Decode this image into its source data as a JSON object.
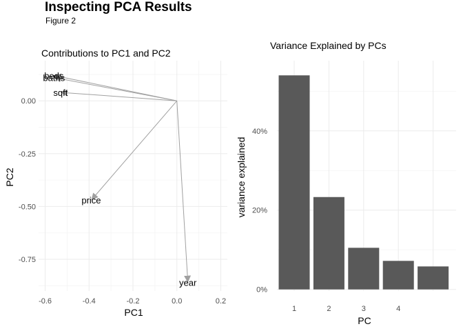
{
  "figure": {
    "title": "Inspecting PCA Results",
    "subtitle": "Figure 2"
  },
  "chart_data": [
    {
      "type": "scatter",
      "subtype": "biplot-arrows",
      "title": "Contributions to PC1 and PC2",
      "xlabel": "PC1",
      "ylabel": "PC2",
      "xlim": [
        -0.63,
        0.23
      ],
      "ylim": [
        -0.9,
        0.19
      ],
      "xticks": [
        -0.6,
        -0.4,
        -0.2,
        0.0,
        0.2
      ],
      "xtick_labels": [
        "-0.6",
        "-0.4",
        "-0.2",
        "0.0",
        "0.2"
      ],
      "yticks": [
        0.0,
        -0.25,
        -0.5,
        -0.75
      ],
      "ytick_labels": [
        "0.00",
        "-0.25",
        "-0.50",
        "-0.75"
      ],
      "grid": true,
      "arrow_color": "#a0a0a0",
      "arrows": [
        {
          "label": "beds",
          "x": -0.56,
          "y": 0.12
        },
        {
          "label": "baths",
          "x": -0.56,
          "y": 0.11
        },
        {
          "label": "sqft",
          "x": -0.53,
          "y": 0.04
        },
        {
          "label": "price",
          "x": -0.39,
          "y": -0.47
        },
        {
          "label": "year",
          "x": 0.05,
          "y": -0.86
        }
      ]
    },
    {
      "type": "bar",
      "title": "Variance Explained by PCs",
      "xlabel": "PC",
      "ylabel": "variance explained",
      "categories": [
        "1",
        "2",
        "3",
        "4",
        ""
      ],
      "values": [
        0.54,
        0.233,
        0.105,
        0.072,
        0.058
      ],
      "ylim": [
        -0.004,
        0.577
      ],
      "yticks": [
        0,
        0.2,
        0.4
      ],
      "ytick_labels": [
        "0%",
        "20%",
        "40%"
      ],
      "bar_color": "#595959",
      "grid": true
    }
  ]
}
